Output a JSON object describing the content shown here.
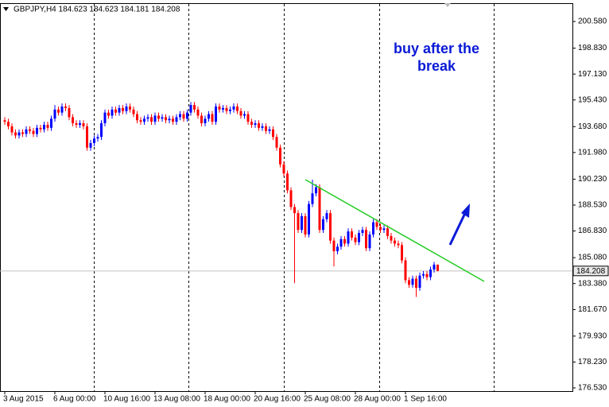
{
  "chart_data": {
    "type": "candlestick",
    "title": "GBPJPY,H4  184.623 184.623 184.181 184.208",
    "annotation": [
      "buy after the",
      "break"
    ],
    "categories": [
      "3 Aug 2015",
      null,
      null,
      null,
      null,
      null,
      null,
      null,
      null,
      null,
      null,
      null,
      null,
      null,
      "6 Aug 00:00",
      null,
      null,
      null,
      null,
      null,
      null,
      null,
      null,
      null,
      null,
      null,
      null,
      null,
      "10 Aug 16:00",
      null,
      null,
      null,
      null,
      null,
      null,
      null,
      null,
      null,
      null,
      null,
      null,
      null,
      "13 Aug 08:00",
      null,
      null,
      null,
      null,
      null,
      null,
      null,
      null,
      null,
      null,
      null,
      null,
      null,
      "18 Aug 00:00",
      null,
      null,
      null,
      null,
      null,
      null,
      null,
      null,
      null,
      null,
      null,
      null,
      null,
      "20 Aug 16:00",
      null,
      null,
      null,
      null,
      null,
      null,
      null,
      null,
      null,
      null,
      null,
      null,
      null,
      "25 Aug 08:00",
      null,
      null,
      null,
      null,
      null,
      null,
      null,
      null,
      null,
      null,
      null,
      null,
      null,
      "28 Aug 00:00",
      null,
      null,
      null,
      null,
      null,
      null,
      null,
      null,
      null,
      null,
      null,
      null,
      null,
      "1 Sep 16:00",
      null,
      null,
      null,
      null,
      null,
      null,
      null,
      null,
      null
    ],
    "open": [
      194.1,
      194.0,
      193.7,
      193.3,
      193.1,
      193.3,
      193.2,
      193.5,
      193.4,
      193.2,
      193.6,
      193.5,
      193.8,
      193.6,
      194.2,
      194.8,
      194.6,
      195.0,
      194.9,
      194.3,
      193.9,
      193.8,
      193.9,
      193.7,
      192.3,
      192.6,
      192.9,
      193.0,
      193.9,
      194.6,
      194.4,
      194.8,
      194.6,
      194.9,
      194.7,
      195.0,
      194.8,
      194.5,
      194.1,
      194.0,
      194.2,
      194.3,
      194.0,
      194.4,
      194.2,
      194.3,
      194.1,
      194.2,
      194.0,
      194.3,
      194.5,
      194.2,
      194.6,
      195.1,
      194.8,
      194.4,
      193.9,
      194.2,
      194.5,
      194.0,
      195.0,
      194.8,
      194.9,
      194.7,
      194.8,
      195.0,
      194.7,
      194.4,
      194.5,
      194.0,
      193.8,
      193.9,
      193.6,
      193.7,
      193.4,
      193.5,
      193.0,
      192.3,
      191.2,
      190.6,
      189.5,
      188.4,
      188.0,
      186.9,
      187.8,
      186.6,
      188.6,
      189.3,
      189.7,
      186.9,
      187.6,
      188.0,
      186.2,
      185.5,
      185.8,
      186.3,
      186.0,
      186.8,
      186.4,
      186.1,
      186.7,
      186.9,
      185.7,
      186.6,
      187.4,
      187.1,
      186.9,
      187.0,
      186.5,
      186.2,
      186.0,
      185.9,
      184.9,
      183.6,
      183.3,
      183.7,
      183.1,
      183.9,
      184.0,
      183.8,
      184.3,
      184.623
    ],
    "high": [
      194.3,
      194.2,
      193.9,
      193.5,
      193.5,
      193.5,
      193.7,
      193.7,
      193.6,
      193.8,
      193.8,
      194.0,
      194.0,
      194.4,
      195.1,
      195.0,
      195.2,
      195.2,
      195.1,
      194.5,
      194.1,
      194.1,
      194.1,
      193.9,
      192.8,
      193.1,
      193.2,
      194.1,
      194.8,
      194.8,
      195.0,
      195.0,
      195.1,
      195.1,
      195.2,
      195.2,
      195.0,
      194.7,
      194.3,
      194.4,
      194.5,
      194.5,
      194.6,
      194.6,
      194.5,
      194.5,
      194.4,
      194.4,
      194.5,
      194.7,
      194.7,
      194.8,
      195.3,
      195.3,
      195.0,
      194.6,
      194.4,
      194.7,
      194.7,
      195.2,
      195.2,
      195.1,
      195.1,
      195.0,
      195.2,
      195.2,
      194.9,
      194.7,
      194.7,
      194.2,
      194.1,
      194.1,
      193.9,
      193.9,
      193.7,
      193.7,
      193.2,
      192.5,
      191.4,
      190.8,
      189.7,
      188.6,
      188.2,
      188.0,
      188.0,
      188.8,
      190.2,
      189.9,
      189.9,
      187.8,
      188.2,
      188.2,
      186.4,
      186.0,
      186.5,
      186.5,
      187.0,
      187.0,
      186.6,
      186.9,
      187.1,
      187.1,
      186.8,
      187.6,
      187.6,
      187.3,
      187.2,
      187.2,
      186.7,
      186.4,
      186.2,
      186.1,
      185.1,
      183.8,
      183.9,
      183.9,
      184.1,
      184.2,
      184.2,
      184.5,
      184.8,
      184.623
    ],
    "low": [
      193.8,
      193.5,
      193.1,
      192.9,
      192.9,
      193.0,
      193.0,
      193.2,
      193.0,
      193.0,
      193.3,
      193.3,
      193.4,
      193.4,
      194.0,
      194.4,
      194.4,
      194.7,
      194.1,
      193.7,
      193.6,
      193.6,
      193.5,
      192.1,
      192.1,
      192.4,
      192.7,
      192.8,
      193.7,
      194.2,
      194.2,
      194.4,
      194.4,
      194.5,
      194.5,
      194.6,
      194.3,
      193.9,
      193.8,
      193.8,
      194.0,
      193.8,
      193.8,
      194.0,
      194.0,
      193.9,
      193.9,
      193.8,
      193.8,
      194.1,
      194.0,
      194.0,
      194.4,
      194.6,
      194.2,
      193.7,
      193.7,
      194.0,
      193.8,
      193.8,
      194.6,
      194.6,
      194.5,
      194.5,
      194.6,
      194.5,
      194.2,
      194.2,
      193.8,
      193.6,
      193.6,
      193.4,
      193.4,
      193.2,
      193.2,
      192.8,
      192.1,
      191.0,
      190.4,
      189.3,
      188.2,
      183.4,
      186.7,
      186.7,
      186.4,
      186.4,
      188.4,
      189.1,
      186.7,
      186.7,
      187.4,
      186.0,
      184.5,
      185.3,
      185.6,
      185.8,
      185.8,
      186.2,
      185.9,
      185.9,
      186.5,
      185.5,
      185.5,
      186.4,
      186.9,
      186.7,
      186.7,
      186.3,
      186.0,
      185.8,
      185.7,
      184.7,
      183.4,
      183.1,
      183.1,
      182.5,
      182.9,
      183.7,
      183.6,
      183.6,
      184.1,
      184.181
    ],
    "close": [
      194.0,
      193.7,
      193.3,
      193.1,
      193.3,
      193.2,
      193.5,
      193.4,
      193.2,
      193.6,
      193.5,
      193.8,
      193.6,
      194.2,
      194.8,
      194.6,
      195.0,
      194.9,
      194.3,
      193.9,
      193.8,
      193.9,
      193.7,
      192.3,
      192.6,
      192.9,
      193.0,
      193.9,
      194.6,
      194.4,
      194.8,
      194.6,
      194.9,
      194.7,
      195.0,
      194.8,
      194.5,
      194.1,
      194.0,
      194.2,
      194.3,
      194.0,
      194.4,
      194.2,
      194.3,
      194.1,
      194.2,
      194.0,
      194.3,
      194.5,
      194.2,
      194.6,
      195.1,
      194.8,
      194.4,
      193.9,
      194.2,
      194.5,
      194.0,
      195.0,
      194.8,
      194.9,
      194.7,
      194.8,
      195.0,
      194.7,
      194.4,
      194.5,
      194.0,
      193.8,
      193.9,
      193.6,
      193.7,
      193.4,
      193.5,
      193.0,
      192.3,
      191.2,
      190.6,
      189.5,
      188.4,
      188.0,
      186.9,
      187.8,
      186.6,
      188.6,
      189.3,
      189.7,
      186.9,
      187.6,
      188.0,
      186.2,
      185.5,
      185.8,
      186.3,
      186.0,
      186.8,
      186.4,
      186.1,
      186.7,
      186.9,
      185.7,
      186.6,
      187.4,
      187.1,
      186.9,
      187.0,
      186.5,
      186.2,
      186.0,
      185.9,
      184.9,
      183.6,
      183.3,
      183.7,
      183.1,
      183.9,
      184.0,
      183.8,
      184.3,
      184.623,
      184.208
    ],
    "up_color": "#0000ff",
    "down_color": "#ff0000",
    "last_price": 184.208,
    "trendline": {
      "x": [
        84,
        134
      ],
      "y": [
        190.2,
        183.52
      ],
      "color": "#22cc22"
    },
    "ylim": [
      176.32,
      201.73
    ],
    "yticks": [
      {
        "value": 176.53,
        "label": "176.530"
      },
      {
        "value": 178.23,
        "label": "178.230"
      },
      {
        "value": 179.93,
        "label": "179.930"
      },
      {
        "value": 181.67,
        "label": "181.670"
      },
      {
        "value": 183.38,
        "label": "183.380"
      },
      {
        "value": 185.08,
        "label": "185.080"
      },
      {
        "value": 186.83,
        "label": "186.830"
      },
      {
        "value": 188.53,
        "label": "188.530"
      },
      {
        "value": 190.23,
        "label": "190.230"
      },
      {
        "value": 191.98,
        "label": "191.980"
      },
      {
        "value": 193.68,
        "label": "193.680"
      },
      {
        "value": 195.43,
        "label": "195.430"
      },
      {
        "value": 197.13,
        "label": "197.130"
      },
      {
        "value": 198.83,
        "label": "198.830"
      },
      {
        "value": 200.58,
        "label": "200.580"
      }
    ]
  }
}
